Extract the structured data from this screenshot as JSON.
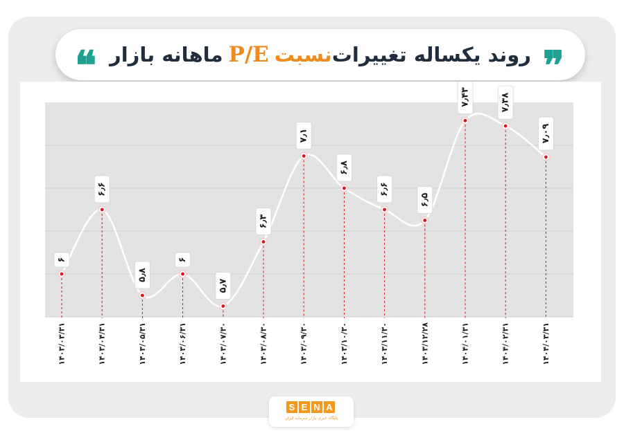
{
  "title": {
    "part_before": "روند یکساله تغییرات",
    "accent": "P/E",
    "part_accent_word": "نسبت",
    "part_after": "ماهانه بازار",
    "quote_open": "❞",
    "quote_close": "❝"
  },
  "colors": {
    "accent": "#f08a1c",
    "quote": "#20a090",
    "marker": "#d8141e",
    "line": "#ffffff",
    "grid": "#cfcfcf",
    "plot_bg": "#e3e3e3"
  },
  "logo": {
    "letters": [
      "S",
      "E",
      "N",
      "A"
    ],
    "subtitle": "پایگاه خبری بازار سرمایه ایران"
  },
  "chart_data": {
    "type": "line",
    "x": [
      "۱۴۰۳/۰۳/۳۱",
      "۱۴۰۳/۰۴/۳۱",
      "۱۴۰۳/۰۵/۳۱",
      "۱۴۰۳/۰۶/۳۱",
      "۱۴۰۳/۰۷/۳۰",
      "۱۴۰۳/۰۸/۳۰",
      "۱۴۰۳/۰۹/۳۰",
      "۱۴۰۳/۱۰/۳۰",
      "۱۴۰۳/۱۱/۳۰",
      "۱۴۰۳/۱۲/۲۸",
      "۱۴۰۴/۰۱/۳۱",
      "۱۴۰۴/۰۲/۳۱",
      "۱۴۰۴/۰۳/۳۱"
    ],
    "values": [
      6,
      6.6,
      5.8,
      6,
      5.7,
      6.3,
      7.1,
      6.8,
      6.6,
      6.5,
      7.43,
      7.38,
      7.09
    ],
    "data_labels": [
      "۶",
      "۶٫۶",
      "۵٫۸",
      "۶",
      "۵٫۷",
      "۶٫۳",
      "۷٫۱",
      "۶٫۸",
      "۶٫۶",
      "۶٫۵",
      "۷٫۴۳",
      "۷٫۳۸",
      "۷٫۰۹"
    ],
    "ylim": [
      5.6,
      7.6
    ],
    "grid": true,
    "legend": "none"
  }
}
